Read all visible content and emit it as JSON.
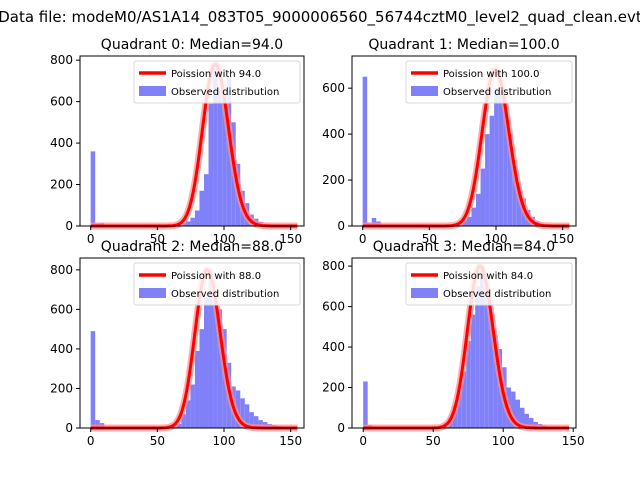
{
  "figure": {
    "title": "Data file: modeM0/AS1A14_083T05_9000006560_56744cztM0_level2_quad_clean.evt"
  },
  "chart_data": [
    {
      "type": "bar",
      "title": "Quadrant 0: Median=94.0",
      "median": 94.0,
      "xlim": [
        -8,
        160
      ],
      "ylim": [
        0,
        820
      ],
      "xticks": [
        0,
        50,
        100,
        150
      ],
      "yticks": [
        0,
        200,
        400,
        600,
        800
      ],
      "bin_width": 3.4,
      "bins": [
        [
          0,
          360
        ],
        [
          3.4,
          12
        ],
        [
          6.8,
          15
        ],
        [
          10.2,
          6
        ],
        [
          13.6,
          2
        ],
        [
          17,
          1
        ],
        [
          20.4,
          0
        ],
        [
          23.8,
          0
        ],
        [
          27.2,
          0
        ],
        [
          30.6,
          0
        ],
        [
          34,
          0
        ],
        [
          37.4,
          0
        ],
        [
          40.8,
          0
        ],
        [
          44.2,
          0
        ],
        [
          47.6,
          1
        ],
        [
          51,
          2
        ],
        [
          54.4,
          3
        ],
        [
          57.8,
          4
        ],
        [
          61.2,
          6
        ],
        [
          64.6,
          8
        ],
        [
          68,
          14
        ],
        [
          71.4,
          22
        ],
        [
          74.8,
          40
        ],
        [
          78.2,
          75
        ],
        [
          81.6,
          170
        ],
        [
          85,
          250
        ],
        [
          88.4,
          590
        ],
        [
          91.8,
          780
        ],
        [
          95.2,
          670
        ],
        [
          98.6,
          640
        ],
        [
          102,
          720
        ],
        [
          105.4,
          500
        ],
        [
          108.8,
          300
        ],
        [
          112.2,
          170
        ],
        [
          115.6,
          110
        ],
        [
          119,
          55
        ],
        [
          122.4,
          35
        ],
        [
          125.8,
          20
        ],
        [
          129.2,
          10
        ],
        [
          132.6,
          5
        ],
        [
          136,
          3
        ],
        [
          139.4,
          2
        ],
        [
          142.8,
          1
        ],
        [
          146.2,
          1
        ],
        [
          149.6,
          0
        ],
        [
          153,
          0
        ]
      ],
      "legend": [
        "Poission with 94.0",
        "Observed distribution"
      ]
    },
    {
      "type": "bar",
      "title": "Quadrant 1: Median=100.0",
      "median": 100.0,
      "xlim": [
        -8,
        160
      ],
      "ylim": [
        0,
        740
      ],
      "xticks": [
        0,
        50,
        100,
        150
      ],
      "yticks": [
        0,
        200,
        400,
        600
      ],
      "bin_width": 3.4,
      "bins": [
        [
          0,
          650
        ],
        [
          3.4,
          15
        ],
        [
          6.8,
          35
        ],
        [
          10.2,
          20
        ],
        [
          13.6,
          3
        ],
        [
          17,
          1
        ],
        [
          20.4,
          0
        ],
        [
          23.8,
          0
        ],
        [
          27.2,
          0
        ],
        [
          30.6,
          0
        ],
        [
          34,
          0
        ],
        [
          37.4,
          0
        ],
        [
          40.8,
          0
        ],
        [
          44.2,
          0
        ],
        [
          47.6,
          1
        ],
        [
          51,
          1
        ],
        [
          54.4,
          2
        ],
        [
          57.8,
          3
        ],
        [
          61.2,
          5
        ],
        [
          64.6,
          6
        ],
        [
          68,
          10
        ],
        [
          71.4,
          14
        ],
        [
          74.8,
          25
        ],
        [
          78.2,
          40
        ],
        [
          81.6,
          80
        ],
        [
          85,
          140
        ],
        [
          88.4,
          250
        ],
        [
          91.8,
          400
        ],
        [
          95.2,
          480
        ],
        [
          98.6,
          600
        ],
        [
          102,
          680
        ],
        [
          105.4,
          560
        ],
        [
          108.8,
          400
        ],
        [
          112.2,
          260
        ],
        [
          115.6,
          170
        ],
        [
          119,
          120
        ],
        [
          122.4,
          70
        ],
        [
          125.8,
          40
        ],
        [
          129.2,
          20
        ],
        [
          132.6,
          10
        ],
        [
          136,
          5
        ],
        [
          139.4,
          3
        ],
        [
          142.8,
          2
        ],
        [
          146.2,
          1
        ],
        [
          149.6,
          0
        ],
        [
          153,
          0
        ]
      ],
      "legend": [
        "Poission with 100.0",
        "Observed distribution"
      ]
    },
    {
      "type": "bar",
      "title": "Quadrant 2: Median=88.0",
      "median": 88.0,
      "xlim": [
        -8,
        160
      ],
      "ylim": [
        0,
        860
      ],
      "xticks": [
        0,
        50,
        100,
        150
      ],
      "yticks": [
        0,
        200,
        400,
        600,
        800
      ],
      "bin_width": 3.4,
      "bins": [
        [
          0,
          490
        ],
        [
          3.4,
          40
        ],
        [
          6.8,
          25
        ],
        [
          10.2,
          5
        ],
        [
          13.6,
          2
        ],
        [
          17,
          1
        ],
        [
          20.4,
          0
        ],
        [
          23.8,
          0
        ],
        [
          27.2,
          0
        ],
        [
          30.6,
          0
        ],
        [
          34,
          0
        ],
        [
          37.4,
          0
        ],
        [
          40.8,
          0
        ],
        [
          44.2,
          0
        ],
        [
          47.6,
          1
        ],
        [
          51,
          2
        ],
        [
          54.4,
          6
        ],
        [
          57.8,
          10
        ],
        [
          61.2,
          15
        ],
        [
          64.6,
          20
        ],
        [
          68,
          70
        ],
        [
          71.4,
          140
        ],
        [
          74.8,
          220
        ],
        [
          78.2,
          390
        ],
        [
          81.6,
          500
        ],
        [
          85,
          660
        ],
        [
          88.4,
          800
        ],
        [
          91.8,
          650
        ],
        [
          95.2,
          600
        ],
        [
          98.6,
          500
        ],
        [
          102,
          330
        ],
        [
          105.4,
          210
        ],
        [
          108.8,
          190
        ],
        [
          112.2,
          150
        ],
        [
          115.6,
          120
        ],
        [
          119,
          80
        ],
        [
          122.4,
          60
        ],
        [
          125.8,
          40
        ],
        [
          129.2,
          30
        ],
        [
          132.6,
          20
        ],
        [
          136,
          15
        ],
        [
          139.4,
          10
        ],
        [
          142.8,
          5
        ],
        [
          146.2,
          2
        ],
        [
          149.6,
          1
        ],
        [
          153,
          1
        ]
      ],
      "legend": [
        "Poission with 88.0",
        "Observed distribution"
      ]
    },
    {
      "type": "bar",
      "title": "Quadrant 3: Median=84.0",
      "median": 84.0,
      "xlim": [
        -8,
        152
      ],
      "ylim": [
        0,
        840
      ],
      "xticks": [
        0,
        50,
        100,
        150
      ],
      "yticks": [
        0,
        200,
        400,
        600,
        800
      ],
      "bin_width": 3.2,
      "bins": [
        [
          0,
          230
        ],
        [
          3.2,
          15
        ],
        [
          6.4,
          8
        ],
        [
          9.6,
          3
        ],
        [
          12.8,
          1
        ],
        [
          16,
          0
        ],
        [
          19.2,
          0
        ],
        [
          22.4,
          0
        ],
        [
          25.6,
          0
        ],
        [
          28.8,
          0
        ],
        [
          32,
          0
        ],
        [
          35.2,
          0
        ],
        [
          38.4,
          0
        ],
        [
          41.6,
          0
        ],
        [
          44.8,
          1
        ],
        [
          48,
          2
        ],
        [
          51.2,
          6
        ],
        [
          54.4,
          12
        ],
        [
          57.6,
          25
        ],
        [
          60.8,
          50
        ],
        [
          64,
          110
        ],
        [
          67.2,
          190
        ],
        [
          70.4,
          280
        ],
        [
          73.6,
          430
        ],
        [
          76.8,
          560
        ],
        [
          80,
          700
        ],
        [
          83.2,
          800
        ],
        [
          86.4,
          690
        ],
        [
          89.6,
          570
        ],
        [
          92.8,
          460
        ],
        [
          96,
          390
        ],
        [
          99.2,
          300
        ],
        [
          102.4,
          200
        ],
        [
          105.6,
          180
        ],
        [
          108.8,
          140
        ],
        [
          112,
          100
        ],
        [
          115.2,
          70
        ],
        [
          118.4,
          50
        ],
        [
          121.6,
          30
        ],
        [
          124.8,
          20
        ],
        [
          128,
          12
        ],
        [
          131.2,
          6
        ],
        [
          134.4,
          3
        ],
        [
          137.6,
          2
        ],
        [
          140.8,
          1
        ]
      ],
      "legend": [
        "Poission with 84.0",
        "Observed distribution"
      ]
    }
  ],
  "colors": {
    "bar": "#8080f8",
    "line": "#ff0000",
    "line_glow": "#ff9090"
  }
}
